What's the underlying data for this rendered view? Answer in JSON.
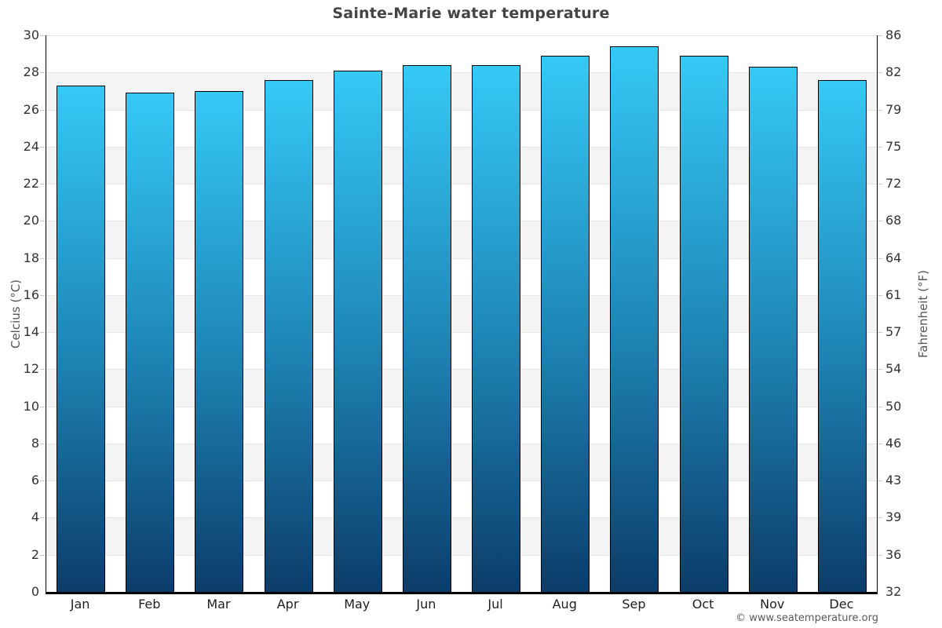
{
  "chart_data": {
    "type": "bar",
    "title": "Sainte-Marie water temperature",
    "categories": [
      "Jan",
      "Feb",
      "Mar",
      "Apr",
      "May",
      "Jun",
      "Jul",
      "Aug",
      "Sep",
      "Oct",
      "Nov",
      "Dec"
    ],
    "values": [
      27.3,
      26.9,
      27.0,
      27.6,
      28.1,
      28.4,
      28.4,
      28.9,
      29.4,
      28.9,
      28.3,
      27.6
    ],
    "unit": "°C",
    "ylabel_left": "Celcius (°C)",
    "ylabel_right": "Fahrenheit (°F)",
    "yticks_left": [
      "30",
      "28",
      "26",
      "24",
      "22",
      "20",
      "18",
      "16",
      "14",
      "12",
      "10",
      "8",
      "6",
      "4",
      "2",
      "0"
    ],
    "yticks_right": [
      "86",
      "82",
      "79",
      "75",
      "72",
      "68",
      "64",
      "61",
      "57",
      "54",
      "50",
      "46",
      "43",
      "39",
      "36",
      "32"
    ],
    "ylim": [
      0,
      30
    ],
    "grid": true,
    "band_pattern": "alternating horizontal bands every 2°C, white then light gray, starting white at 30-28",
    "legend": "none",
    "colors": {
      "bar_gradient_top": "#36c9f6",
      "bar_gradient_mid": "#1e86b6",
      "bar_gradient_bottom": "#0c3c6a",
      "bar_border": "#000000",
      "band_gray": "#f4f4f4",
      "gridline": "#e6e6e6",
      "title_text": "#444444",
      "tick_text": "#333333",
      "axis_label_text": "#555555"
    }
  },
  "footer": {
    "credit": "© www.seatemperature.org"
  }
}
